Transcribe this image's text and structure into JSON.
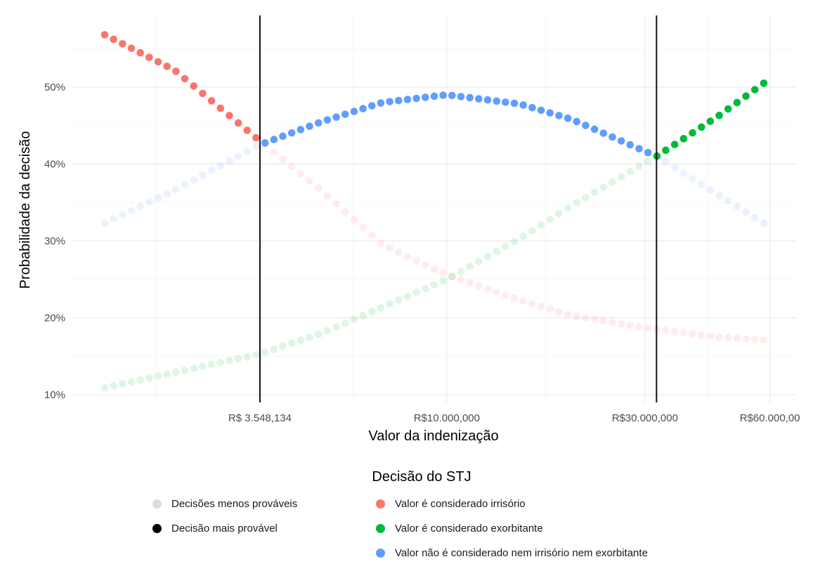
{
  "chart_data": {
    "type": "scatter",
    "xlabel": "Valor da indenização",
    "ylabel": "Probabilidade da decisão",
    "x_scale": "log",
    "x_range": [
      1500000,
      60000000
    ],
    "ylim": [
      10,
      57
    ],
    "grid": true,
    "y_ticks": [
      "10%",
      "20%",
      "30%",
      "40%",
      "50%"
    ],
    "y_tick_values": [
      10,
      20,
      30,
      40,
      50
    ],
    "x_ticks": [
      "R$ 3.548,134",
      "R$10.000,000",
      "R$30.000,000",
      "R$60.000,00"
    ],
    "x_tick_values": [
      3548134,
      10000000,
      30000000,
      60000000
    ],
    "thresholds": [
      3548134,
      32000000
    ],
    "n_points": 75,
    "colors": {
      "irrisorio": "#F8766D",
      "exorbitante": "#00BA38",
      "nenhum": "#619CFF",
      "menos_provaveis": "#dcdcdc",
      "mais_provavel": "#000000",
      "vline": "#111111"
    },
    "series": [
      {
        "name": "Valor é considerado irrisório",
        "key": "irrisorio",
        "points": [
          [
            1500000,
            56.8
          ],
          [
            2210000,
            52.2
          ],
          [
            3548134,
            43.0
          ],
          [
            5000000,
            36.5
          ],
          [
            7000000,
            29.5
          ],
          [
            10000000,
            25.6
          ],
          [
            15000000,
            22.3
          ],
          [
            20000000,
            20.3
          ],
          [
            30000000,
            18.7
          ],
          [
            45000000,
            17.5
          ],
          [
            58000000,
            17.1
          ]
        ]
      },
      {
        "name": "Valor é considerado exorbitante",
        "key": "exorbitante",
        "points": [
          [
            1500000,
            10.9
          ],
          [
            2210000,
            12.9
          ],
          [
            3548134,
            15.3
          ],
          [
            5000000,
            18.0
          ],
          [
            7000000,
            21.4
          ],
          [
            10000000,
            25.0
          ],
          [
            15000000,
            30.3
          ],
          [
            20000000,
            34.6
          ],
          [
            32000000,
            41.0
          ],
          [
            45000000,
            46.2
          ],
          [
            58000000,
            50.5
          ]
        ]
      },
      {
        "name": "Valor não é considerado nem irrisório nem exorbitante",
        "key": "nenhum",
        "points": [
          [
            1500000,
            32.3
          ],
          [
            2210000,
            36.6
          ],
          [
            3548134,
            42.5
          ],
          [
            5000000,
            45.5
          ],
          [
            7000000,
            48.0
          ],
          [
            10000000,
            49.0
          ],
          [
            15000000,
            47.8
          ],
          [
            20000000,
            45.8
          ],
          [
            32000000,
            41.0
          ],
          [
            45000000,
            36.0
          ],
          [
            58000000,
            32.3
          ]
        ]
      }
    ]
  },
  "legend": {
    "title": "Decisão do STJ",
    "items": [
      {
        "label": "Decisões menos prováveis",
        "color": "#dcdcdc"
      },
      {
        "label": "Decisão mais provável",
        "color": "#000000"
      },
      {
        "label": "Valor é considerado irrisório",
        "color": "#F8766D"
      },
      {
        "label": "Valor é considerado exorbitante",
        "color": "#00BA38"
      },
      {
        "label": "Valor não é considerado nem irrisório nem exorbitante",
        "color": "#619CFF"
      }
    ]
  }
}
